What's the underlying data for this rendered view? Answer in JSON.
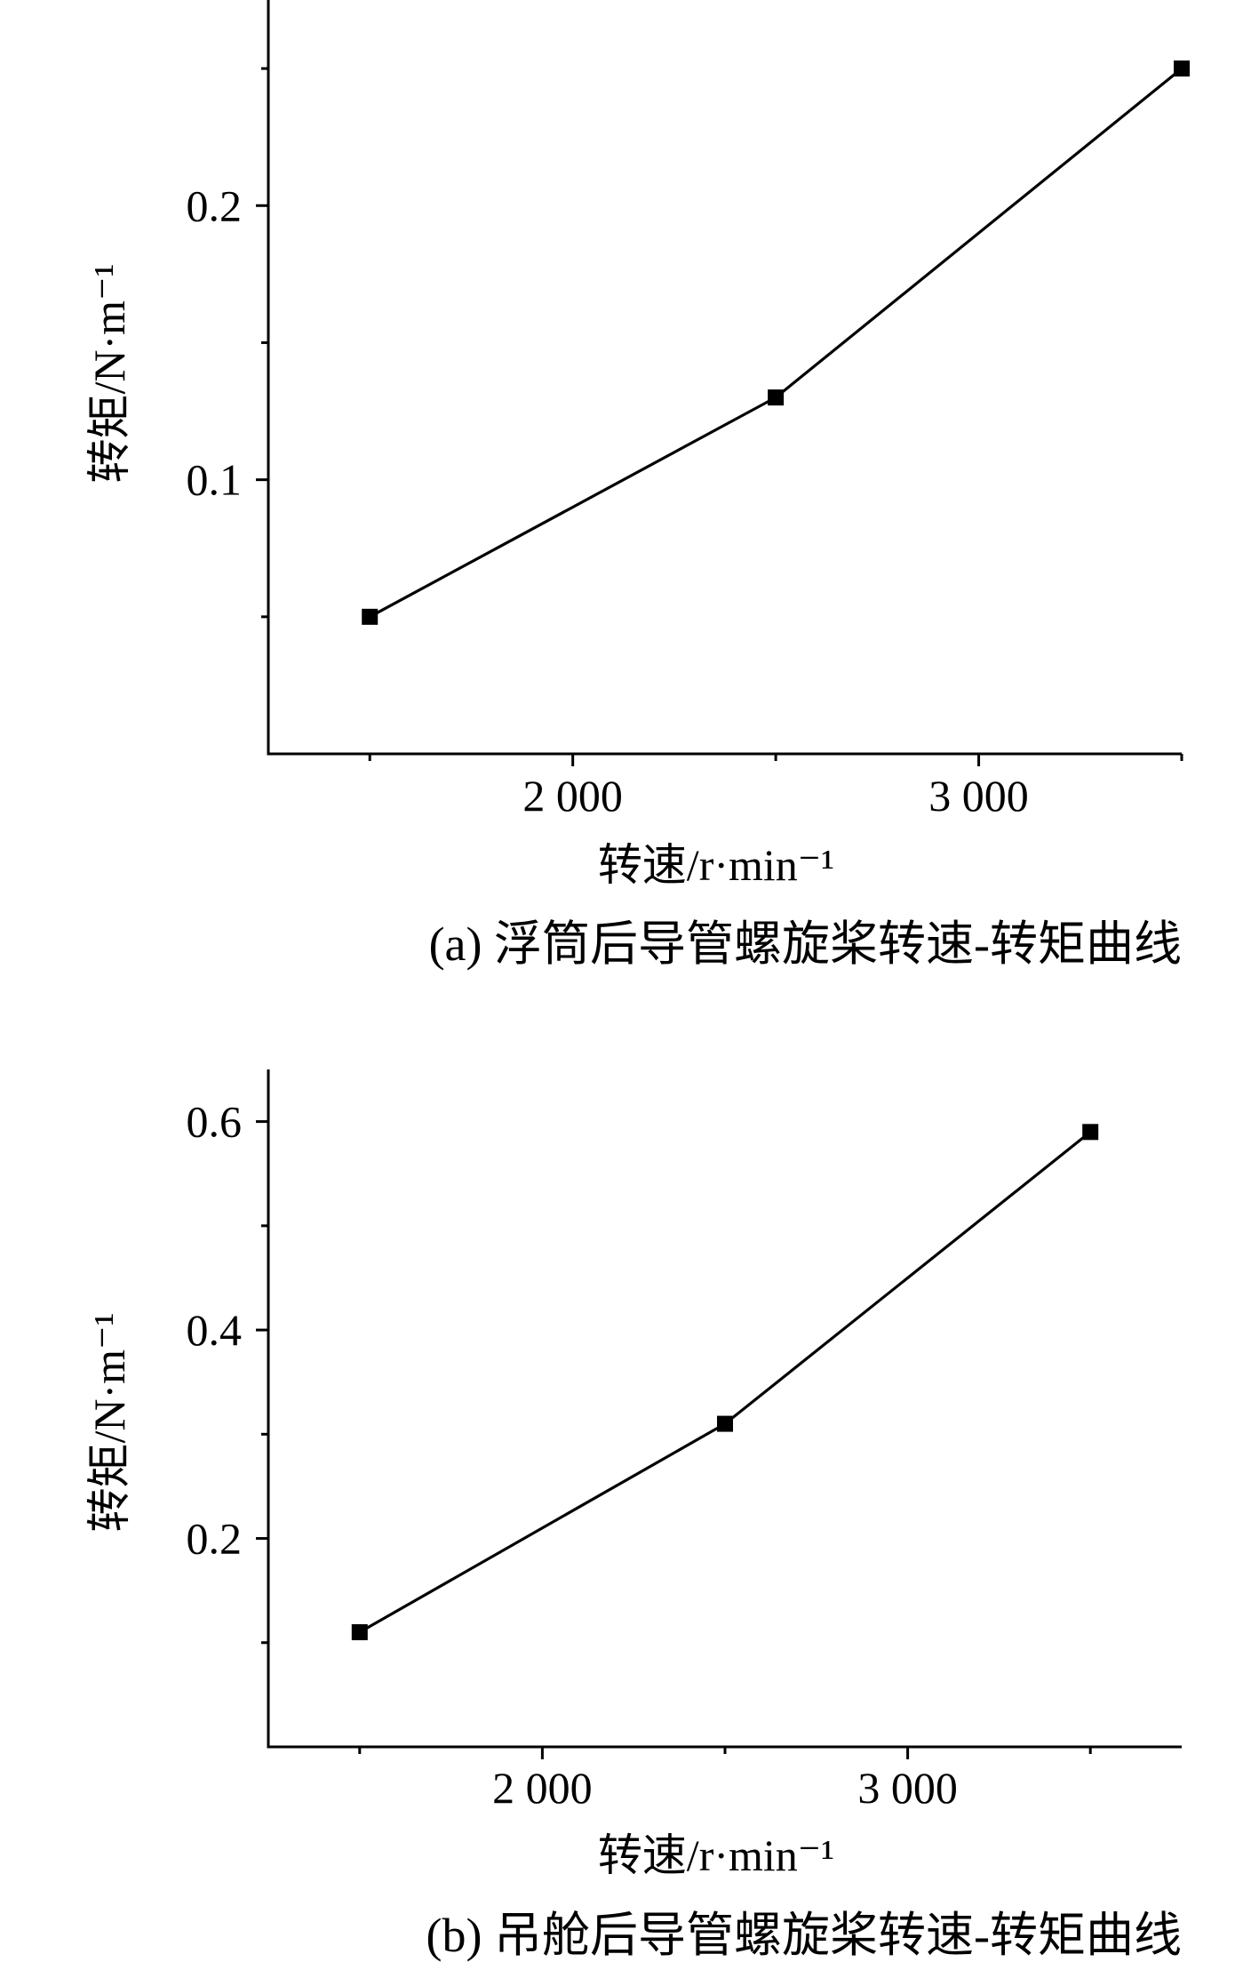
{
  "colors": {
    "axis": "#000000",
    "series": "#000000",
    "background": "#ffffff"
  },
  "chart_data": [
    {
      "panel": "a",
      "type": "line",
      "title": "",
      "caption": "(a) 浮筒后导管螺旋桨转速-转矩曲线",
      "xlabel": "转速/r·min⁻¹",
      "ylabel": "转矩/N·m⁻¹",
      "xlim": [
        1250,
        3500
      ],
      "ylim": [
        0.0,
        0.275
      ],
      "x_ticks": [
        2000,
        3000
      ],
      "x_tick_labels": [
        "2 000",
        "3 000"
      ],
      "x_minor_ticks": [
        1500,
        2500,
        3500
      ],
      "y_ticks": [
        0.1,
        0.2
      ],
      "y_tick_labels": [
        "0.1",
        "0.2"
      ],
      "y_minor_ticks": [
        0.05,
        0.15,
        0.25
      ],
      "grid": false,
      "marker": "square",
      "series": [
        {
          "x": [
            1500,
            2500,
            3500
          ],
          "y": [
            0.05,
            0.13,
            0.25
          ]
        }
      ]
    },
    {
      "panel": "b",
      "type": "line",
      "title": "",
      "caption": "(b) 吊舱后导管螺旋桨转速-转矩曲线",
      "xlabel": "转速/r·min⁻¹",
      "ylabel": "转矩/N·m⁻¹",
      "xlim": [
        1250,
        3750
      ],
      "ylim": [
        0.0,
        0.65
      ],
      "x_ticks": [
        2000,
        3000
      ],
      "x_tick_labels": [
        "2 000",
        "3 000"
      ],
      "x_minor_ticks": [
        1500,
        2500,
        3500
      ],
      "y_ticks": [
        0.2,
        0.4,
        0.6
      ],
      "y_tick_labels": [
        "0.2",
        "0.4",
        "0.6"
      ],
      "y_minor_ticks": [
        0.1,
        0.3,
        0.5
      ],
      "grid": false,
      "marker": "square",
      "series": [
        {
          "x": [
            1500,
            2500,
            3500
          ],
          "y": [
            0.11,
            0.31,
            0.59
          ]
        }
      ]
    }
  ]
}
